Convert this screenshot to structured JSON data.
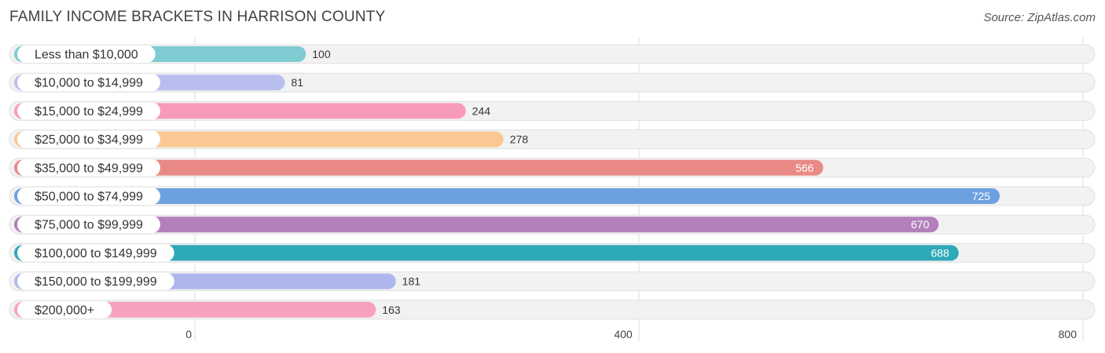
{
  "header": {
    "title": "FAMILY INCOME BRACKETS IN HARRISON COUNTY",
    "source": "Source: ZipAtlas.com"
  },
  "chart_data": {
    "type": "bar",
    "orientation": "horizontal",
    "title": "FAMILY INCOME BRACKETS IN HARRISON COUNTY",
    "xlabel": "",
    "ylabel": "",
    "xlim": [
      0,
      800
    ],
    "ticks": [
      0,
      400,
      800
    ],
    "grid": true,
    "categories": [
      "Less than $10,000",
      "$10,000 to $14,999",
      "$15,000 to $24,999",
      "$25,000 to $34,999",
      "$35,000 to $49,999",
      "$50,000 to $74,999",
      "$75,000 to $99,999",
      "$100,000 to $149,999",
      "$150,000 to $199,999",
      "$200,000+"
    ],
    "values": [
      100,
      81,
      244,
      278,
      566,
      725,
      670,
      688,
      181,
      163
    ],
    "colors": [
      "#7ecbd1",
      "#b8bfee",
      "#f79bb8",
      "#fac893",
      "#ea8a86",
      "#6ca1e0",
      "#b380bb",
      "#2ea9b8",
      "#aeb6ec",
      "#f7a1bf"
    ],
    "value_label_inside": [
      false,
      false,
      false,
      false,
      true,
      true,
      true,
      true,
      false,
      false
    ]
  }
}
